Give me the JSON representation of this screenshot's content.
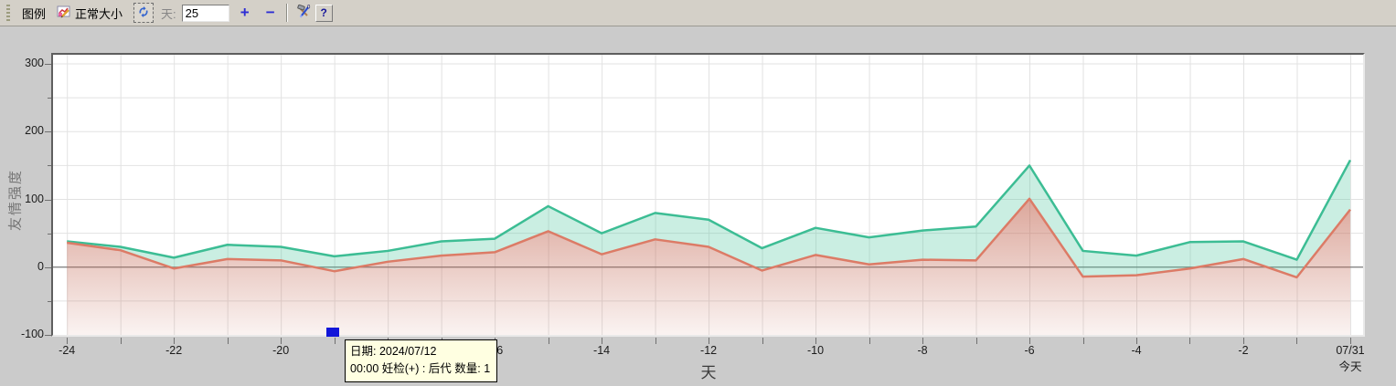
{
  "toolbar": {
    "legend_label": "图例",
    "normal_size_label": "正常大小",
    "days_label": "天:",
    "days_value": "25",
    "zoom_in_label": "+",
    "zoom_out_label": "−",
    "help_label": "?"
  },
  "tooltip": {
    "line1": "日期: 2024/07/12",
    "line2": "00:00 妊检(+) : 后代 数量: 1"
  },
  "chart_data": {
    "type": "area",
    "title": "",
    "xlabel": "天",
    "ylabel": "友情强度",
    "x": [
      -24,
      -23,
      -22,
      -21,
      -20,
      -19,
      -18,
      -17,
      -16,
      -15,
      -14,
      -13,
      -12,
      -11,
      -10,
      -9,
      -8,
      -7,
      -6,
      -5,
      -4,
      -3,
      -2,
      -1,
      0
    ],
    "series": [
      {
        "name": "upper-friendship-line",
        "line_color": "#3cbd94",
        "fill_color": "rgba(80,200,160,0.30)",
        "values": [
          38,
          30,
          14,
          33,
          30,
          16,
          24,
          38,
          42,
          90,
          50,
          80,
          70,
          28,
          58,
          44,
          54,
          60,
          150,
          24,
          17,
          37,
          38,
          11,
          158
        ]
      },
      {
        "name": "lower-friendship-line",
        "line_color": "#dc7b66",
        "fill_top_color": "rgba(195,105,85,0.60)",
        "fill_bottom_color": "rgba(195,105,85,0)",
        "values": [
          36,
          25,
          -2,
          12,
          10,
          -6,
          8,
          17,
          22,
          53,
          19,
          41,
          30,
          -5,
          18,
          4,
          11,
          10,
          101,
          -14,
          -12,
          -2,
          12,
          -15,
          85
        ]
      }
    ],
    "x_major_days": [
      -24,
      -22,
      -20,
      -18,
      -16,
      -14,
      -12,
      -10,
      -8,
      -6,
      -4,
      -2,
      0
    ],
    "x_major_labels": [
      "-24",
      "-22",
      "-20",
      "-18",
      "-16",
      "-14",
      "-12",
      "-10",
      "-8",
      "-6",
      "-4",
      "-2",
      "07/31"
    ],
    "today_sublabel": "今天",
    "y_tick_values": [
      -100,
      0,
      100,
      200,
      300
    ],
    "y_tick_labels": [
      "-100",
      "0",
      "100",
      "200",
      "300"
    ],
    "y_minor_values": [
      -50,
      50,
      150,
      250
    ],
    "xlim": [
      -24.26,
      0.24
    ],
    "ylim": [
      -100,
      313.5
    ],
    "grid": true,
    "grid_color": "#e2e2e2",
    "zero_line_color": "#7a7a7a",
    "event_marker": {
      "day": -19,
      "date": "2024/07/12",
      "color": "#1216d9"
    }
  }
}
